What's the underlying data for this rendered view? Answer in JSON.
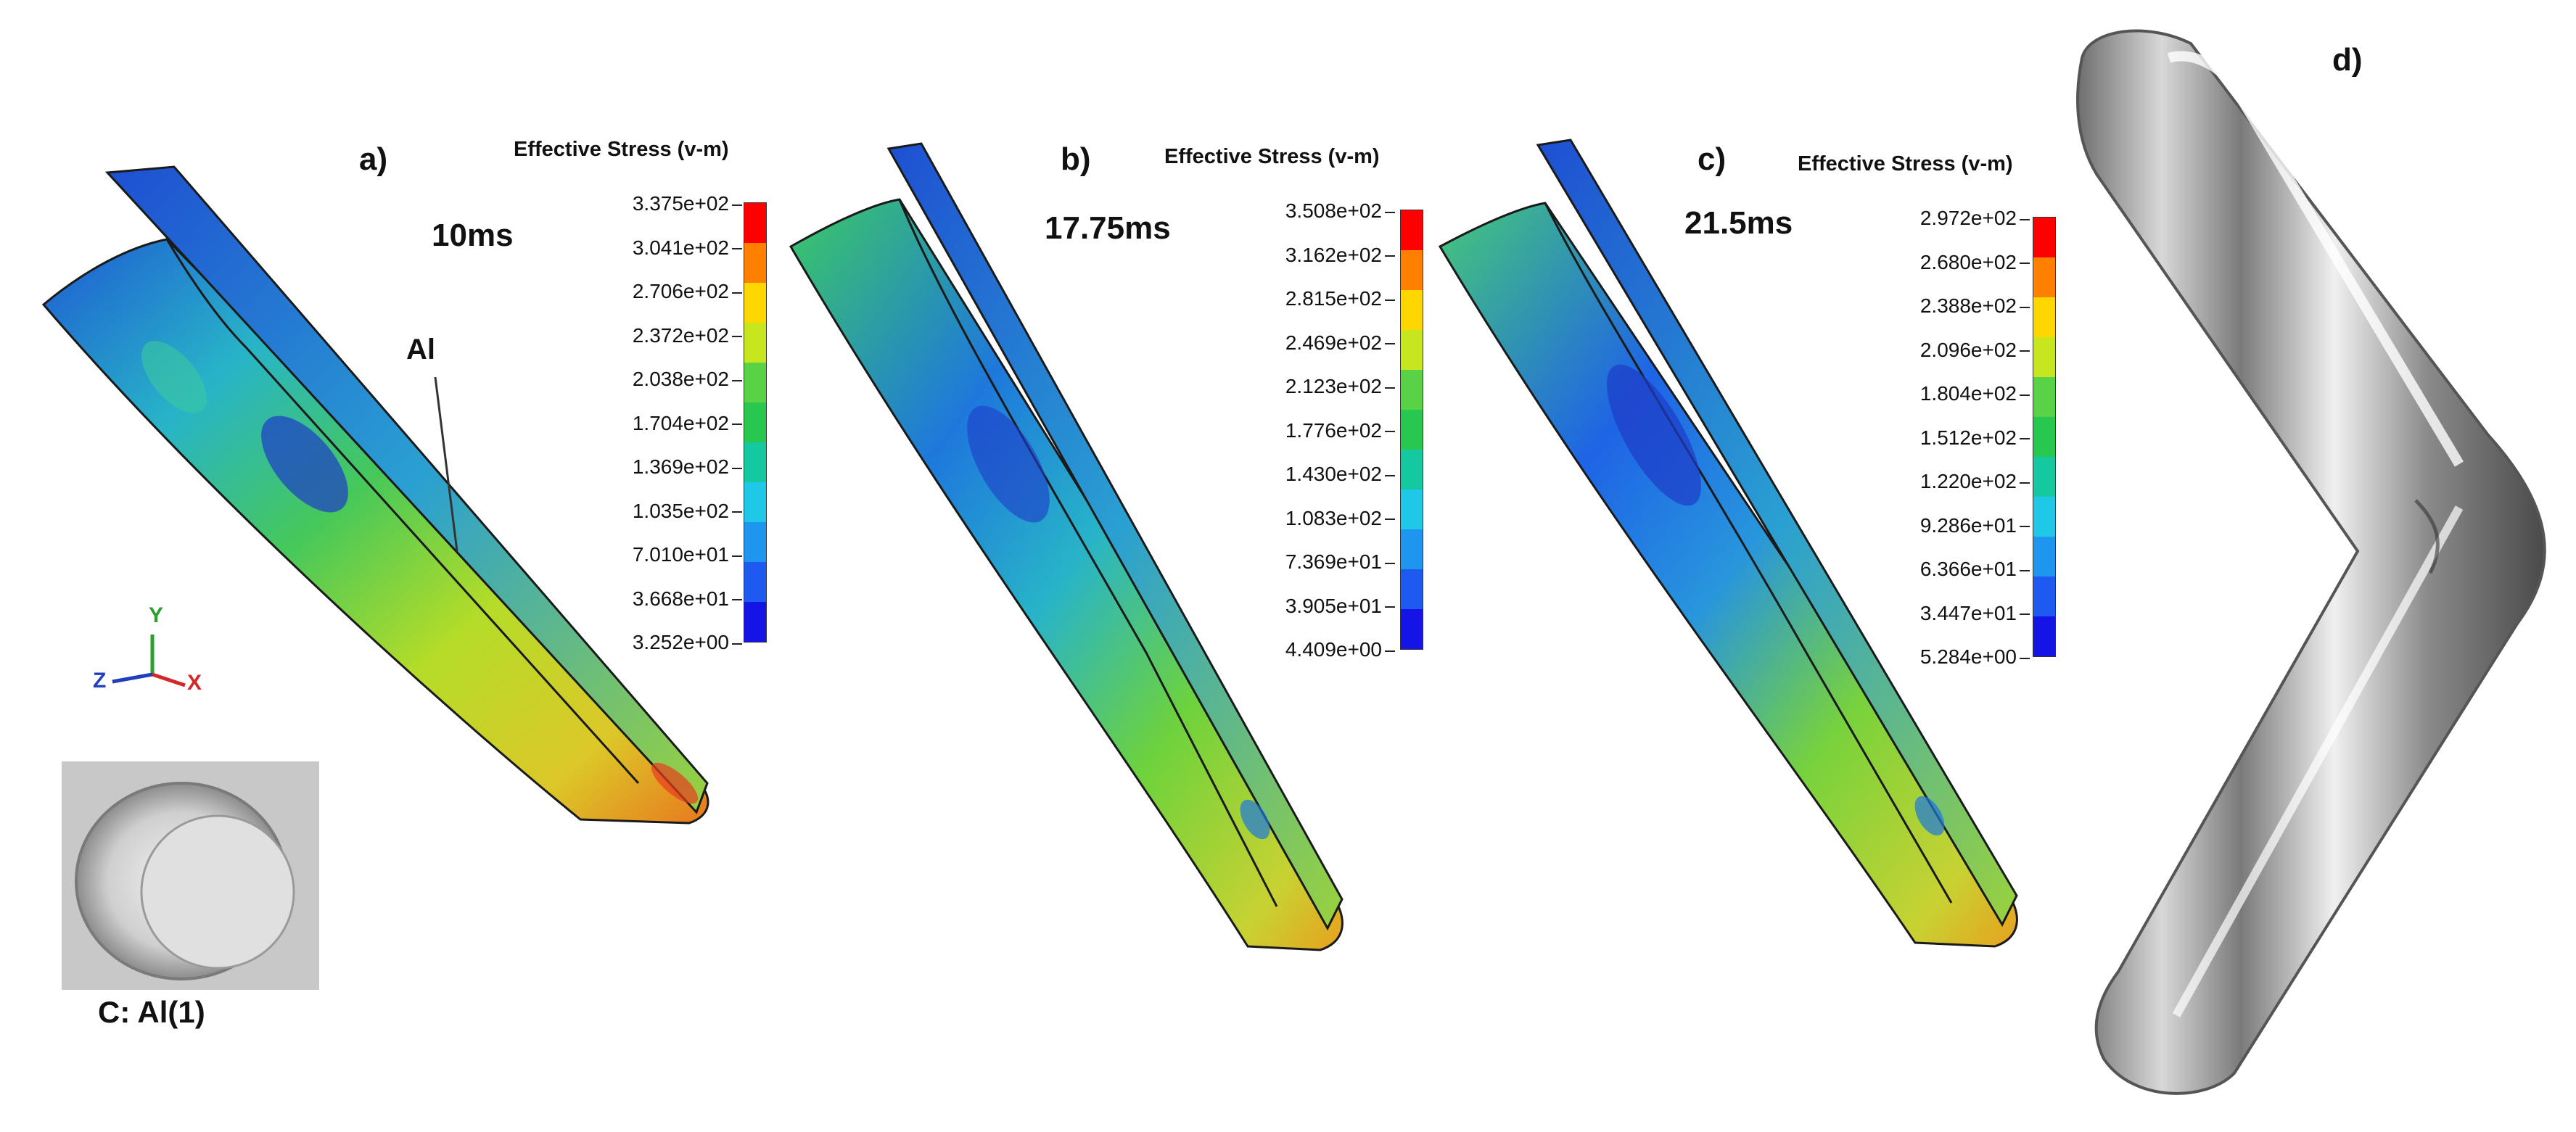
{
  "panels": [
    {
      "letter": "a)",
      "time": "10ms",
      "legend_title": "Effective Stress (v-m)",
      "legend_values": [
        "3.375e+02",
        "3.041e+02",
        "2.706e+02",
        "2.372e+02",
        "2.038e+02",
        "1.704e+02",
        "1.369e+02",
        "1.035e+02",
        "7.010e+01",
        "3.668e+01",
        "3.252e+00"
      ]
    },
    {
      "letter": "b)",
      "time": "17.75ms",
      "legend_title": "Effective Stress (v-m)",
      "legend_values": [
        "3.508e+02",
        "3.162e+02",
        "2.815e+02",
        "2.469e+02",
        "2.123e+02",
        "1.776e+02",
        "1.430e+02",
        "1.083e+02",
        "7.369e+01",
        "3.905e+01",
        "4.409e+00"
      ]
    },
    {
      "letter": "c)",
      "time": "21.5ms",
      "legend_title": "Effective Stress (v-m)",
      "legend_values": [
        "2.972e+02",
        "2.680e+02",
        "2.388e+02",
        "2.096e+02",
        "1.804e+02",
        "1.512e+02",
        "1.220e+02",
        "9.286e+01",
        "6.366e+01",
        "3.447e+01",
        "5.284e+00"
      ]
    }
  ],
  "panel_d_letter": "d)",
  "material_callout": "Al",
  "axes_triad": {
    "y": "Y",
    "z": "Z",
    "x": "X"
  },
  "photo_caption": "C: Al(1)",
  "colors": {
    "scale": [
      "#ff0000",
      "#ff7f00",
      "#ffd700",
      "#c8e61e",
      "#5ad246",
      "#28c850",
      "#14c8a0",
      "#1ec8e6",
      "#1e96f0",
      "#1e5af0",
      "#1414e6"
    ]
  }
}
